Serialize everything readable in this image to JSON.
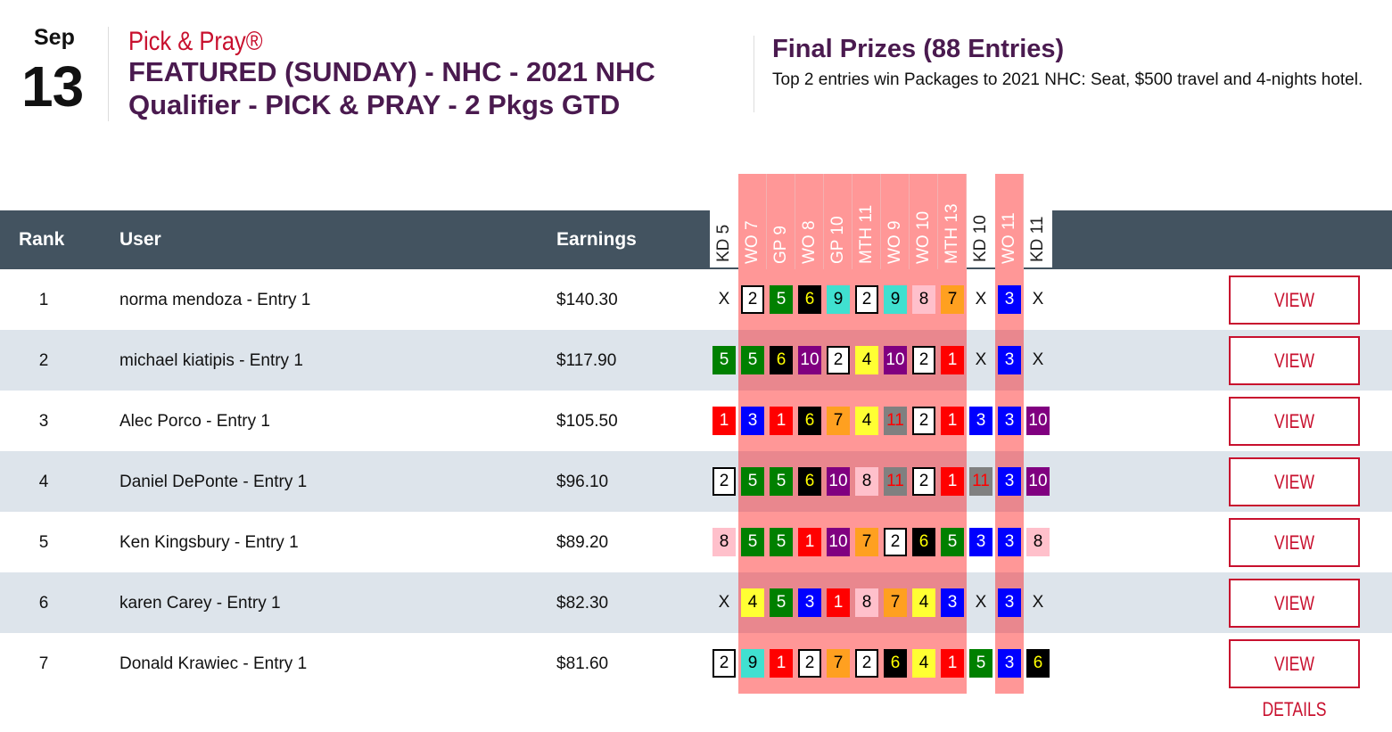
{
  "header": {
    "month": "Sep",
    "day": "13",
    "brand": "Pick & Pray®",
    "title": "FEATURED (SUNDAY) - NHC - 2021 NHC Qualifier - PICK & PRAY - 2 Pkgs GTD",
    "prizes_title": "Final Prizes (88 Entries)",
    "prizes_desc": "Top 2 entries win Packages to 2021 NHC: Seat, $500 travel and 4-nights hotel."
  },
  "table": {
    "columns": {
      "rank": "Rank",
      "user": "User",
      "earnings": "Earnings"
    },
    "races": [
      {
        "label": "KD 5",
        "highlight": false
      },
      {
        "label": "WO 7",
        "highlight": true
      },
      {
        "label": "GP 9",
        "highlight": true
      },
      {
        "label": "WO 8",
        "highlight": true
      },
      {
        "label": "GP 10",
        "highlight": true
      },
      {
        "label": "MTH 11",
        "highlight": true
      },
      {
        "label": "WO 9",
        "highlight": true
      },
      {
        "label": "WO 10",
        "highlight": true
      },
      {
        "label": "MTH 13",
        "highlight": true
      },
      {
        "label": "KD 10",
        "highlight": false
      },
      {
        "label": "WO 11",
        "highlight": true
      },
      {
        "label": "KD 11",
        "highlight": false
      }
    ],
    "button_label": "VIEW DETAILS",
    "rows": [
      {
        "rank": "1",
        "user": "norma mendoza - Entry 1",
        "earnings": "$140.30",
        "picks": [
          "X",
          "2",
          "5",
          "6",
          "9",
          "2",
          "9",
          "8",
          "7",
          "X",
          "3",
          "X"
        ]
      },
      {
        "rank": "2",
        "user": "michael kiatipis - Entry 1",
        "earnings": "$117.90",
        "picks": [
          "5",
          "5",
          "6",
          "10",
          "2",
          "4",
          "10",
          "2",
          "1",
          "X",
          "3",
          "X"
        ]
      },
      {
        "rank": "3",
        "user": "Alec Porco - Entry 1",
        "earnings": "$105.50",
        "picks": [
          "1",
          "3",
          "1",
          "6",
          "7",
          "4",
          "11",
          "2",
          "1",
          "3",
          "3",
          "10"
        ]
      },
      {
        "rank": "4",
        "user": "Daniel DePonte - Entry 1",
        "earnings": "$96.10",
        "picks": [
          "2",
          "5",
          "5",
          "6",
          "10",
          "8",
          "11",
          "2",
          "1",
          "11",
          "3",
          "10"
        ]
      },
      {
        "rank": "5",
        "user": "Ken Kingsbury - Entry 1",
        "earnings": "$89.20",
        "picks": [
          "8",
          "5",
          "5",
          "1",
          "10",
          "7",
          "2",
          "6",
          "5",
          "3",
          "3",
          "8"
        ]
      },
      {
        "rank": "6",
        "user": "karen Carey - Entry 1",
        "earnings": "$82.30",
        "picks": [
          "X",
          "4",
          "5",
          "3",
          "1",
          "8",
          "7",
          "4",
          "3",
          "X",
          "3",
          "X"
        ]
      },
      {
        "rank": "7",
        "user": "Donald Krawiec - Entry 1",
        "earnings": "$81.60",
        "picks": [
          "2",
          "9",
          "1",
          "2",
          "7",
          "2",
          "6",
          "4",
          "1",
          "5",
          "3",
          "6"
        ]
      }
    ]
  },
  "colors": {
    "header_bg": "#435360",
    "alt_row": "#DDE4EB",
    "highlight": "#FF9797",
    "highlight_alt": "#E9878E",
    "brand_red": "#C8102E",
    "title_purple": "#4A1A4F",
    "saddle": {
      "1": {
        "bg": "#FF0000",
        "fg": "#FFFFFF"
      },
      "2": {
        "bg": "#FFFFFF",
        "fg": "#000000",
        "border": "#000000"
      },
      "3": {
        "bg": "#0000FF",
        "fg": "#FFFFFF"
      },
      "4": {
        "bg": "#FFFF33",
        "fg": "#000000"
      },
      "5": {
        "bg": "#008000",
        "fg": "#FFFFFF"
      },
      "6": {
        "bg": "#000000",
        "fg": "#FFFF00"
      },
      "7": {
        "bg": "#FFA020",
        "fg": "#000000"
      },
      "8": {
        "bg": "#FFC0CB",
        "fg": "#000000"
      },
      "9": {
        "bg": "#40E0D0",
        "fg": "#000000"
      },
      "10": {
        "bg": "#800080",
        "fg": "#FFFFFF"
      },
      "11": {
        "bg": "#808080",
        "fg": "#FF0000"
      }
    }
  }
}
